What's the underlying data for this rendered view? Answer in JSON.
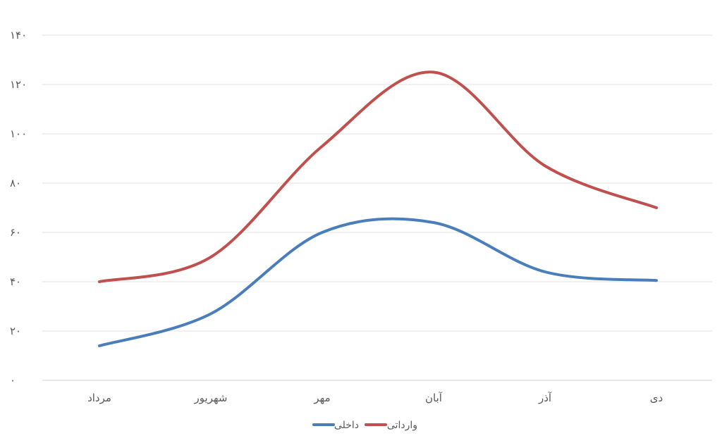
{
  "chart_data": {
    "type": "line",
    "smooth": true,
    "categories": [
      "مرداد",
      "شهریور",
      "مهر",
      "آبان",
      "آذر",
      "دی"
    ],
    "yticks": [
      "۰",
      "۲۰",
      "۴۰",
      "۶۰",
      "۸۰",
      "۱۰۰",
      "۱۲۰",
      "۱۴۰"
    ],
    "ylim": [
      0,
      140
    ],
    "grid": true,
    "legend_position": "bottom",
    "series": [
      {
        "name": "داخلی",
        "color": "#4a7ebb",
        "values": [
          14,
          27,
          60,
          64,
          44,
          40.5
        ]
      },
      {
        "name": "وارداتی",
        "color": "#c0504d",
        "values": [
          40,
          50,
          95,
          125,
          87,
          70
        ]
      }
    ],
    "title": "",
    "xlabel": "",
    "ylabel": ""
  }
}
